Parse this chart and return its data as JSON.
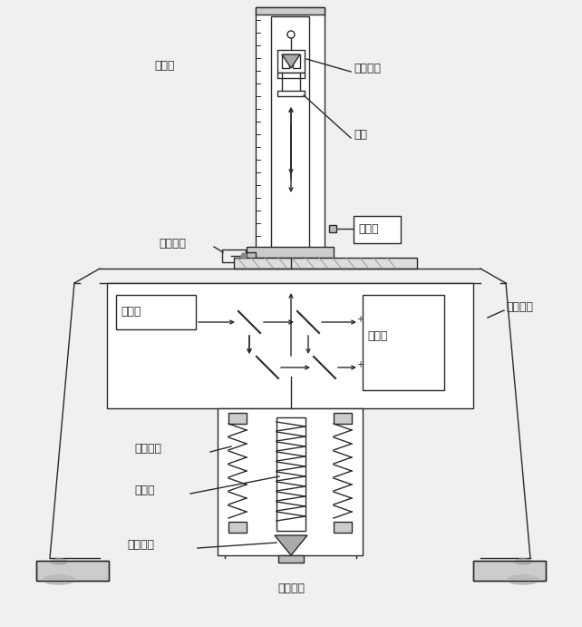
{
  "bg_color": "#f0f0f0",
  "line_color": "#2a2a2a",
  "labels": {
    "luoti_qiang": "落体腔",
    "luoti_jing": "落体棱镜",
    "tuojia": "托架",
    "lizi_beng": "离子泵",
    "fufu_mada": "伺服马达",
    "jiguangqi": "激光器",
    "tancheqi": "探测器",
    "sanjiao_zhijia": "三角支架",
    "zhicheng_tanhuang": "支撑弹簧",
    "zhu_tanhuang": "主弹簧",
    "cankao_jing": "参考棱镜",
    "fufu_xianquan": "伺服线圈"
  }
}
